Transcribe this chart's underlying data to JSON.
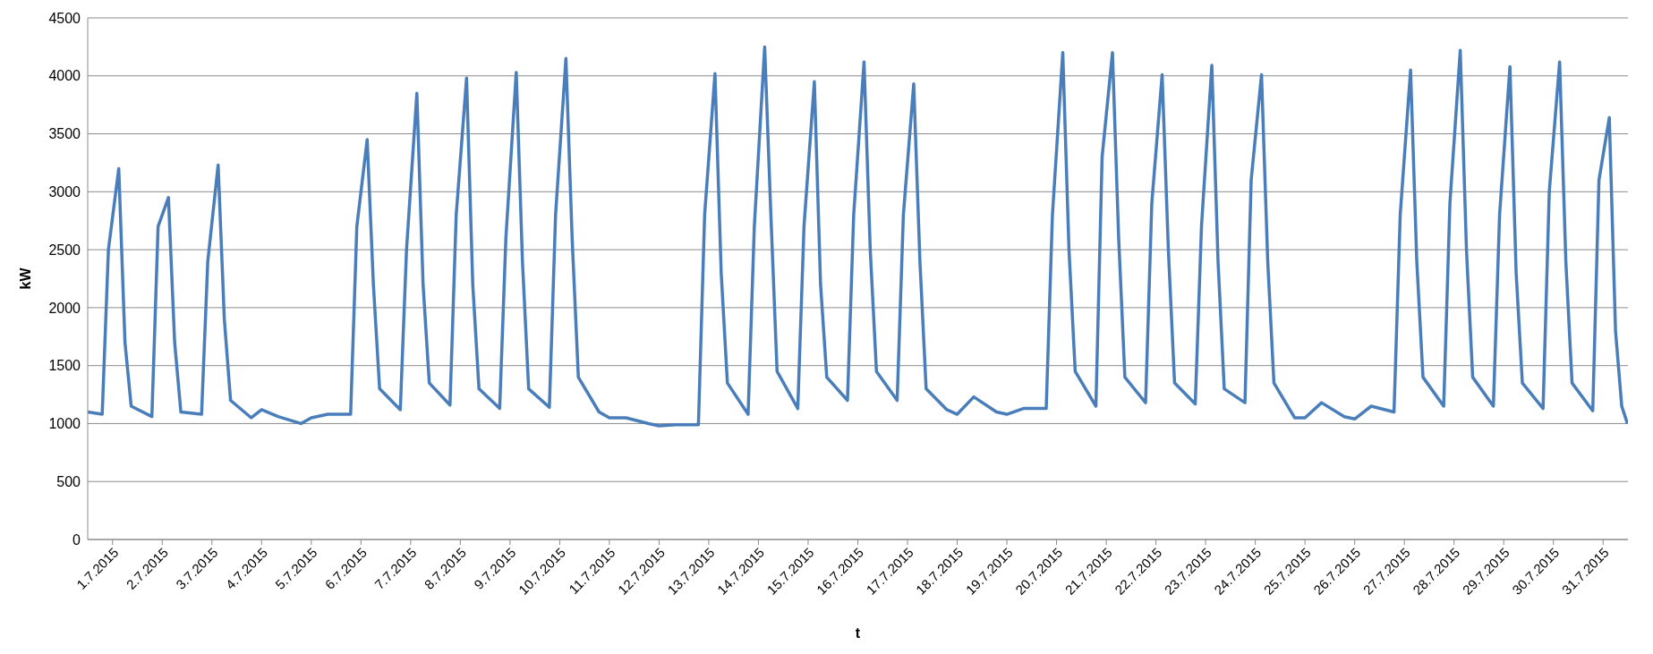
{
  "chart_data": {
    "type": "line",
    "xlabel": "t",
    "ylabel": "kW",
    "ylim": [
      0,
      4500
    ],
    "yticks": [
      0,
      500,
      1000,
      1500,
      2000,
      2500,
      3000,
      3500,
      4000,
      4500
    ],
    "grid": "y",
    "marker": "none",
    "line_style": "solid",
    "xlim": [
      "2015-07-01T00:00",
      "2015-08-01T00:00"
    ],
    "xticks": [
      {
        "value": "2015-07-01T12:00",
        "label": "1.7.2015"
      },
      {
        "value": "2015-07-02T12:00",
        "label": "2.7.2015"
      },
      {
        "value": "2015-07-03T12:00",
        "label": "3.7.2015"
      },
      {
        "value": "2015-07-04T12:00",
        "label": "4.7.2015"
      },
      {
        "value": "2015-07-05T12:00",
        "label": "5.7.2015"
      },
      {
        "value": "2015-07-06T12:00",
        "label": "6.7.2015"
      },
      {
        "value": "2015-07-07T12:00",
        "label": "7.7.2015"
      },
      {
        "value": "2015-07-08T12:00",
        "label": "8.7.2015"
      },
      {
        "value": "2015-07-09T12:00",
        "label": "9.7.2015"
      },
      {
        "value": "2015-07-10T12:00",
        "label": "10.7.2015"
      },
      {
        "value": "2015-07-11T12:00",
        "label": "11.7.2015"
      },
      {
        "value": "2015-07-12T12:00",
        "label": "12.7.2015"
      },
      {
        "value": "2015-07-13T12:00",
        "label": "13.7.2015"
      },
      {
        "value": "2015-07-14T12:00",
        "label": "14.7.2015"
      },
      {
        "value": "2015-07-15T12:00",
        "label": "15.7.2015"
      },
      {
        "value": "2015-07-16T12:00",
        "label": "16.7.2015"
      },
      {
        "value": "2015-07-17T12:00",
        "label": "17.7.2015"
      },
      {
        "value": "2015-07-18T12:00",
        "label": "18.7.2015"
      },
      {
        "value": "2015-07-19T12:00",
        "label": "19.7.2015"
      },
      {
        "value": "2015-07-20T12:00",
        "label": "20.7.2015"
      },
      {
        "value": "2015-07-21T12:00",
        "label": "21.7.2015"
      },
      {
        "value": "2015-07-22T12:00",
        "label": "22.7.2015"
      },
      {
        "value": "2015-07-23T12:00",
        "label": "23.7.2015"
      },
      {
        "value": "2015-07-24T12:00",
        "label": "24.7.2015"
      },
      {
        "value": "2015-07-25T12:00",
        "label": "25.7.2015"
      },
      {
        "value": "2015-07-26T12:00",
        "label": "26.7.2015"
      },
      {
        "value": "2015-07-27T12:00",
        "label": "27.7.2015"
      },
      {
        "value": "2015-07-28T12:00",
        "label": "28.7.2015"
      },
      {
        "value": "2015-07-29T12:00",
        "label": "29.7.2015"
      },
      {
        "value": "2015-07-30T12:00",
        "label": "30.7.2015"
      },
      {
        "value": "2015-07-31T12:00",
        "label": "31.7.2015"
      }
    ],
    "series": [
      {
        "color": "#4a7ebb",
        "x": [
          "2015-07-01T00:00",
          "2015-07-01T07:00",
          "2015-07-01T10:00",
          "2015-07-01T15:00",
          "2015-07-01T18:00",
          "2015-07-01T21:00",
          "2015-07-02T07:00",
          "2015-07-02T10:00",
          "2015-07-02T15:00",
          "2015-07-02T18:00",
          "2015-07-02T21:00",
          "2015-07-03T07:00",
          "2015-07-03T10:00",
          "2015-07-03T15:00",
          "2015-07-03T18:00",
          "2015-07-03T21:00",
          "2015-07-04T07:00",
          "2015-07-04T12:00",
          "2015-07-04T20:00",
          "2015-07-05T07:00",
          "2015-07-05T12:00",
          "2015-07-05T20:00",
          "2015-07-06T07:00",
          "2015-07-06T10:00",
          "2015-07-06T15:00",
          "2015-07-06T18:00",
          "2015-07-06T21:00",
          "2015-07-07T07:00",
          "2015-07-07T10:00",
          "2015-07-07T15:00",
          "2015-07-07T18:00",
          "2015-07-07T21:00",
          "2015-07-08T07:00",
          "2015-07-08T10:00",
          "2015-07-08T15:00",
          "2015-07-08T18:00",
          "2015-07-08T21:00",
          "2015-07-09T07:00",
          "2015-07-09T10:00",
          "2015-07-09T15:00",
          "2015-07-09T18:00",
          "2015-07-09T21:00",
          "2015-07-10T07:00",
          "2015-07-10T10:00",
          "2015-07-10T15:00",
          "2015-07-10T18:00",
          "2015-07-10T21:00",
          "2015-07-11T07:00",
          "2015-07-11T12:00",
          "2015-07-11T20:00",
          "2015-07-12T07:00",
          "2015-07-12T12:00",
          "2015-07-12T20:00",
          "2015-07-13T07:00",
          "2015-07-13T10:00",
          "2015-07-13T15:00",
          "2015-07-13T18:00",
          "2015-07-13T21:00",
          "2015-07-14T07:00",
          "2015-07-14T10:00",
          "2015-07-14T15:00",
          "2015-07-14T18:00",
          "2015-07-14T21:00",
          "2015-07-15T07:00",
          "2015-07-15T10:00",
          "2015-07-15T15:00",
          "2015-07-15T18:00",
          "2015-07-15T21:00",
          "2015-07-16T07:00",
          "2015-07-16T10:00",
          "2015-07-16T15:00",
          "2015-07-16T18:00",
          "2015-07-16T21:00",
          "2015-07-17T07:00",
          "2015-07-17T10:00",
          "2015-07-17T15:00",
          "2015-07-17T18:00",
          "2015-07-17T21:00",
          "2015-07-18T07:00",
          "2015-07-18T12:00",
          "2015-07-18T20:00",
          "2015-07-19T07:00",
          "2015-07-19T12:00",
          "2015-07-19T20:00",
          "2015-07-20T07:00",
          "2015-07-20T10:00",
          "2015-07-20T15:00",
          "2015-07-20T18:00",
          "2015-07-20T21:00",
          "2015-07-21T07:00",
          "2015-07-21T10:00",
          "2015-07-21T15:00",
          "2015-07-21T18:00",
          "2015-07-21T21:00",
          "2015-07-22T07:00",
          "2015-07-22T10:00",
          "2015-07-22T15:00",
          "2015-07-22T18:00",
          "2015-07-22T21:00",
          "2015-07-23T07:00",
          "2015-07-23T10:00",
          "2015-07-23T15:00",
          "2015-07-23T18:00",
          "2015-07-23T21:00",
          "2015-07-24T07:00",
          "2015-07-24T10:00",
          "2015-07-24T15:00",
          "2015-07-24T18:00",
          "2015-07-24T21:00",
          "2015-07-25T07:00",
          "2015-07-25T12:00",
          "2015-07-25T20:00",
          "2015-07-26T07:00",
          "2015-07-26T12:00",
          "2015-07-26T20:00",
          "2015-07-27T07:00",
          "2015-07-27T10:00",
          "2015-07-27T15:00",
          "2015-07-27T18:00",
          "2015-07-27T21:00",
          "2015-07-28T07:00",
          "2015-07-28T10:00",
          "2015-07-28T15:00",
          "2015-07-28T18:00",
          "2015-07-28T21:00",
          "2015-07-29T07:00",
          "2015-07-29T10:00",
          "2015-07-29T15:00",
          "2015-07-29T18:00",
          "2015-07-29T21:00",
          "2015-07-30T07:00",
          "2015-07-30T10:00",
          "2015-07-30T15:00",
          "2015-07-30T18:00",
          "2015-07-30T21:00",
          "2015-07-31T07:00",
          "2015-07-31T10:00",
          "2015-07-31T15:00",
          "2015-07-31T18:00",
          "2015-07-31T21:00",
          "2015-07-31T23:45"
        ],
        "values": [
          1100,
          1080,
          2500,
          3200,
          1700,
          1150,
          1060,
          2700,
          2950,
          1700,
          1100,
          1080,
          2400,
          3230,
          1900,
          1200,
          1050,
          1120,
          1060,
          1000,
          1050,
          1080,
          1080,
          2700,
          3450,
          2200,
          1300,
          1120,
          2500,
          3850,
          2200,
          1350,
          1160,
          2800,
          3980,
          2200,
          1300,
          1130,
          2600,
          4030,
          2400,
          1300,
          1140,
          2800,
          4150,
          2600,
          1400,
          1100,
          1050,
          1050,
          1000,
          980,
          990,
          990,
          2800,
          4020,
          2300,
          1350,
          1080,
          2700,
          4250,
          2800,
          1450,
          1130,
          2700,
          3950,
          2200,
          1400,
          1200,
          2800,
          4120,
          2500,
          1450,
          1200,
          2800,
          3930,
          2400,
          1300,
          1120,
          1080,
          1230,
          1100,
          1080,
          1130,
          1130,
          2800,
          4200,
          2500,
          1450,
          1150,
          3300,
          4200,
          2600,
          1400,
          1180,
          2900,
          4010,
          2500,
          1350,
          1170,
          2700,
          4090,
          2400,
          1300,
          1180,
          3100,
          4010,
          2400,
          1350,
          1050,
          1050,
          1180,
          1060,
          1040,
          1150,
          1100,
          2800,
          4050,
          2400,
          1400,
          1150,
          2900,
          4220,
          2500,
          1400,
          1150,
          2800,
          4080,
          2300,
          1350,
          1130,
          3000,
          4120,
          2400,
          1350,
          1110,
          3100,
          3640,
          1800,
          1150,
          1000
        ]
      }
    ]
  }
}
